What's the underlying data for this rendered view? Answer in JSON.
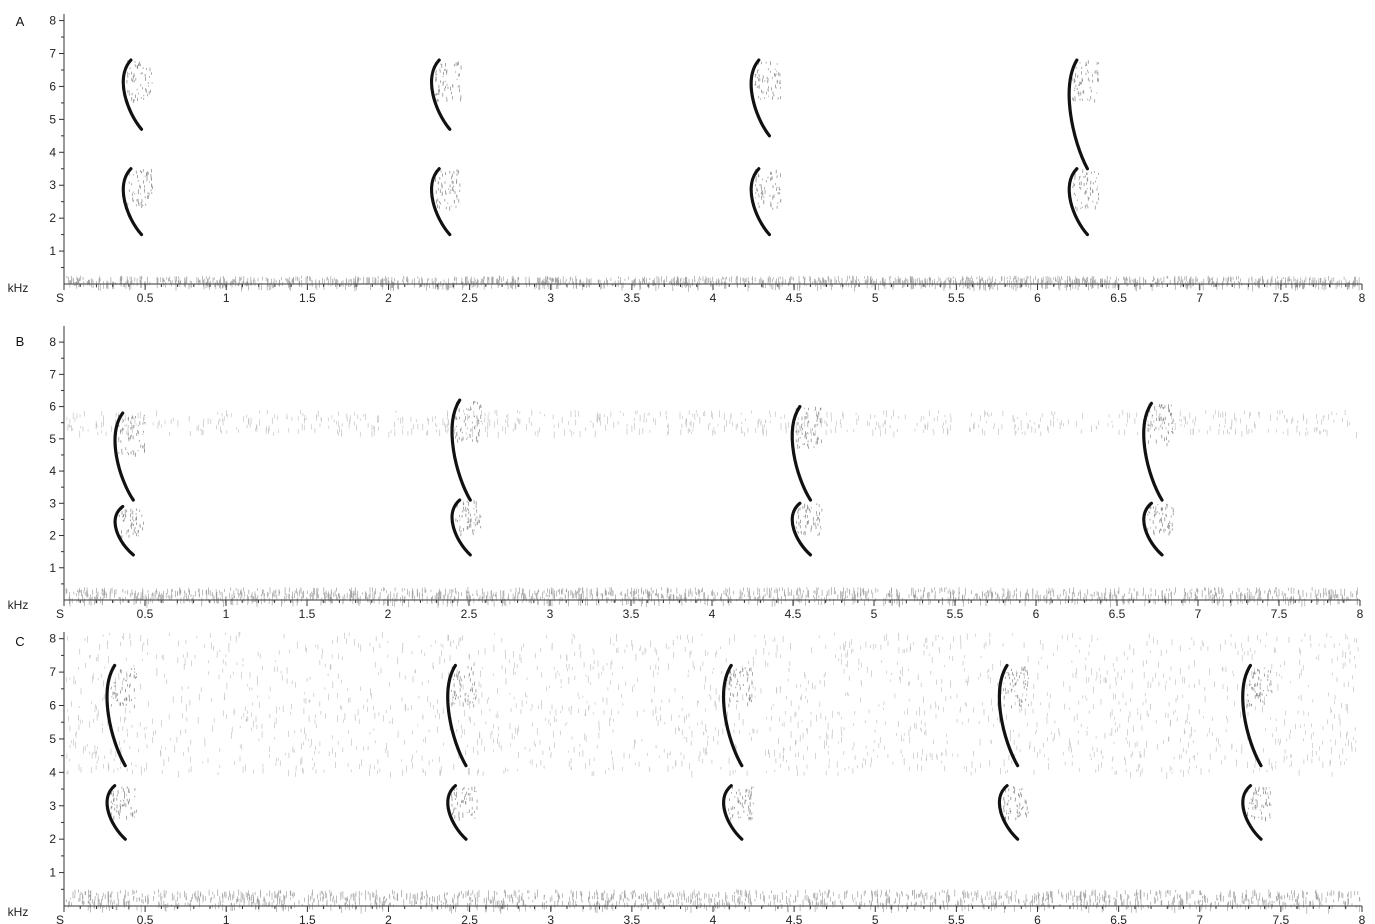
{
  "chart_data": [
    {
      "type": "spectrogram",
      "panel": "A",
      "y_unit": "kHz",
      "x_unit": "S",
      "xlim": [
        0,
        8
      ],
      "ylim": [
        0,
        8.2
      ],
      "x_ticks": [
        "S",
        "0.5",
        "1",
        "1.5",
        "2",
        "2.5",
        "3",
        "3.5",
        "4",
        "4.5",
        "5",
        "5.5",
        "6",
        "6.5",
        "7",
        "7.5",
        "8"
      ],
      "y_ticks": [
        "1",
        "2",
        "3",
        "4",
        "5",
        "6",
        "7",
        "8"
      ],
      "noise_bands": [
        [
          0,
          0.25
        ]
      ],
      "calls": [
        {
          "t": 0.4,
          "high_khz": [
            4.7,
            6.8
          ],
          "low_khz": [
            1.5,
            3.5
          ]
        },
        {
          "t": 2.3,
          "high_khz": [
            4.7,
            6.8
          ],
          "low_khz": [
            1.5,
            3.5
          ]
        },
        {
          "t": 4.27,
          "high_khz": [
            4.5,
            6.8
          ],
          "low_khz": [
            1.5,
            3.5
          ]
        },
        {
          "t": 6.23,
          "high_khz": [
            3.5,
            6.8
          ],
          "low_khz": [
            1.5,
            3.5
          ]
        }
      ]
    },
    {
      "type": "spectrogram",
      "panel": "B",
      "y_unit": "kHz",
      "x_unit": "S",
      "xlim": [
        0,
        8
      ],
      "ylim": [
        0,
        8.5
      ],
      "x_ticks": [
        "S",
        "0.5",
        "1",
        "1.5",
        "2",
        "2.5",
        "3",
        "3.5",
        "4",
        "4.5",
        "5",
        "5.5",
        "6",
        "6.5",
        "7",
        "7.5",
        "8"
      ],
      "y_ticks": [
        "1",
        "2",
        "3",
        "4",
        "5",
        "6",
        "7",
        "8"
      ],
      "noise_bands": [
        [
          0,
          0.4
        ],
        [
          5.2,
          5.9
        ]
      ],
      "calls": [
        {
          "t": 0.35,
          "high_khz": [
            3.1,
            5.8
          ],
          "low_khz": [
            1.4,
            2.9
          ]
        },
        {
          "t": 2.43,
          "high_khz": [
            3.1,
            6.2
          ],
          "low_khz": [
            1.4,
            3.1
          ]
        },
        {
          "t": 4.53,
          "high_khz": [
            3.1,
            6.0
          ],
          "low_khz": [
            1.4,
            3.0
          ]
        },
        {
          "t": 6.7,
          "high_khz": [
            3.1,
            6.1
          ],
          "low_khz": [
            1.4,
            3.0
          ]
        }
      ]
    },
    {
      "type": "spectrogram",
      "panel": "C",
      "y_unit": "kHz",
      "x_unit": "S",
      "xlim": [
        0,
        8
      ],
      "ylim": [
        0,
        8.2
      ],
      "x_ticks": [
        "S",
        "0.5",
        "1",
        "1.5",
        "2",
        "2.5",
        "3",
        "3.5",
        "4",
        "4.5",
        "5",
        "5.5",
        "6",
        "6.5",
        "7",
        "7.5",
        "8"
      ],
      "y_ticks": [
        "1",
        "2",
        "3",
        "4",
        "5",
        "6",
        "7",
        "8"
      ],
      "noise_bands": [
        [
          0,
          0.5
        ],
        [
          4.0,
          6.4
        ],
        [
          6.5,
          8.2
        ]
      ],
      "calls": [
        {
          "t": 0.3,
          "high_khz": [
            4.2,
            7.2
          ],
          "low_khz": [
            2.0,
            3.6
          ]
        },
        {
          "t": 2.4,
          "high_khz": [
            4.2,
            7.2
          ],
          "low_khz": [
            2.0,
            3.6
          ]
        },
        {
          "t": 4.1,
          "high_khz": [
            4.2,
            7.2
          ],
          "low_khz": [
            2.0,
            3.6
          ]
        },
        {
          "t": 5.8,
          "high_khz": [
            4.2,
            7.2
          ],
          "low_khz": [
            2.0,
            3.6
          ]
        },
        {
          "t": 7.3,
          "high_khz": [
            4.2,
            7.2
          ],
          "low_khz": [
            2.0,
            3.6
          ]
        }
      ]
    }
  ],
  "colors": {
    "ink": "#111111",
    "axis": "#333333",
    "noise": "#555555"
  }
}
